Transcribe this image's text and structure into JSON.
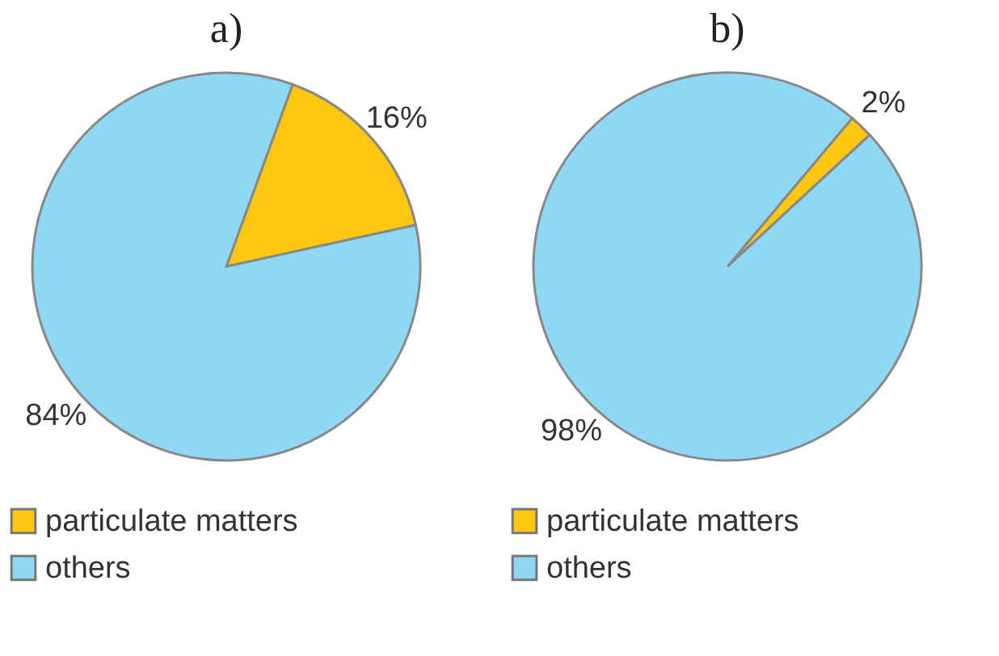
{
  "chart_data": [
    {
      "type": "pie",
      "title": "a)",
      "categories": [
        "particulate matters",
        "others"
      ],
      "values": [
        16,
        84
      ],
      "colors": [
        "#fcc70f",
        "#8fd8f5"
      ],
      "value_labels": [
        "16%",
        "84%"
      ],
      "legend": "bottom left"
    },
    {
      "type": "pie",
      "title": "b)",
      "categories": [
        "particulate matters",
        "others"
      ],
      "values": [
        2,
        98
      ],
      "colors": [
        "#fcc70f",
        "#8fd8f5"
      ],
      "value_labels": [
        "2%",
        "98%"
      ],
      "legend": "bottom left"
    }
  ]
}
